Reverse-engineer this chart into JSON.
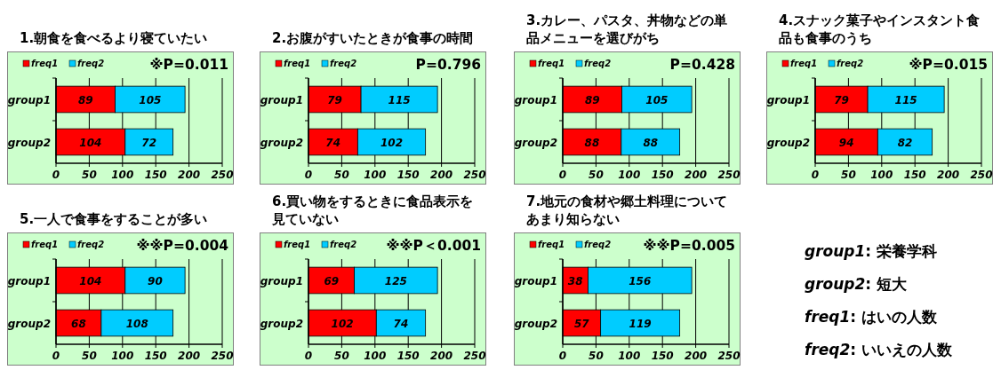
{
  "chart_data": [
    {
      "type": "bar",
      "orientation": "horizontal",
      "stacked": true,
      "title": "1.朝食を食べるより寝ていたい",
      "categories": [
        "group1",
        "group2"
      ],
      "series": [
        {
          "name": "freq1",
          "color": "#ff0000",
          "values": [
            89,
            104
          ]
        },
        {
          "name": "freq2",
          "color": "#00ccff",
          "values": [
            105,
            72
          ]
        }
      ],
      "xlim": [
        0,
        250
      ],
      "xticks": [
        0,
        50,
        100,
        150,
        200,
        250
      ],
      "grid": "x",
      "legend": "top left",
      "data_labels": true,
      "annotations": [
        "※P=0.011"
      ]
    },
    {
      "type": "bar",
      "orientation": "horizontal",
      "stacked": true,
      "title": "2.お腹がすいたときが食事の時間",
      "categories": [
        "group1",
        "group2"
      ],
      "series": [
        {
          "name": "freq1",
          "color": "#ff0000",
          "values": [
            79,
            74
          ]
        },
        {
          "name": "freq2",
          "color": "#00ccff",
          "values": [
            115,
            102
          ]
        }
      ],
      "xlim": [
        0,
        250
      ],
      "xticks": [
        0,
        50,
        100,
        150,
        200,
        250
      ],
      "grid": "x",
      "legend": "top left",
      "data_labels": true,
      "annotations": [
        "P=0.796"
      ]
    },
    {
      "type": "bar",
      "orientation": "horizontal",
      "stacked": true,
      "title": "3.カレー、パスタ、丼物などの単品メニューを選びがち",
      "categories": [
        "group1",
        "group2"
      ],
      "series": [
        {
          "name": "freq1",
          "color": "#ff0000",
          "values": [
            89,
            88
          ]
        },
        {
          "name": "freq2",
          "color": "#00ccff",
          "values": [
            105,
            88
          ]
        }
      ],
      "xlim": [
        0,
        250
      ],
      "xticks": [
        0,
        50,
        100,
        150,
        200,
        250
      ],
      "grid": "x",
      "legend": "top left",
      "data_labels": true,
      "annotations": [
        "P=0.428"
      ]
    },
    {
      "type": "bar",
      "orientation": "horizontal",
      "stacked": true,
      "title": "4.スナック菓子やインスタント食品も食事のうち",
      "categories": [
        "group1",
        "group2"
      ],
      "series": [
        {
          "name": "freq1",
          "color": "#ff0000",
          "values": [
            79,
            94
          ]
        },
        {
          "name": "freq2",
          "color": "#00ccff",
          "values": [
            115,
            82
          ]
        }
      ],
      "xlim": [
        0,
        250
      ],
      "xticks": [
        0,
        50,
        100,
        150,
        200,
        250
      ],
      "grid": "x",
      "legend": "top left",
      "data_labels": true,
      "annotations": [
        "※P=0.015"
      ]
    },
    {
      "type": "bar",
      "orientation": "horizontal",
      "stacked": true,
      "title": "5.一人で食事をすることが多い",
      "categories": [
        "group1",
        "group2"
      ],
      "series": [
        {
          "name": "freq1",
          "color": "#ff0000",
          "values": [
            104,
            68
          ]
        },
        {
          "name": "freq2",
          "color": "#00ccff",
          "values": [
            90,
            108
          ]
        }
      ],
      "xlim": [
        0,
        250
      ],
      "xticks": [
        0,
        50,
        100,
        150,
        200,
        250
      ],
      "grid": "x",
      "legend": "top left",
      "data_labels": true,
      "annotations": [
        "※※P=0.004"
      ]
    },
    {
      "type": "bar",
      "orientation": "horizontal",
      "stacked": true,
      "title": "6.買い物をするときに食品表示を見ていない",
      "categories": [
        "group1",
        "group2"
      ],
      "series": [
        {
          "name": "freq1",
          "color": "#ff0000",
          "values": [
            69,
            102
          ]
        },
        {
          "name": "freq2",
          "color": "#00ccff",
          "values": [
            125,
            74
          ]
        }
      ],
      "xlim": [
        0,
        250
      ],
      "xticks": [
        0,
        50,
        100,
        150,
        200,
        250
      ],
      "grid": "x",
      "legend": "top left",
      "data_labels": true,
      "annotations": [
        "※※P＜0.001"
      ]
    },
    {
      "type": "bar",
      "orientation": "horizontal",
      "stacked": true,
      "title": "7.地元の食材や郷土料理についてあまり知らない",
      "categories": [
        "group1",
        "group2"
      ],
      "series": [
        {
          "name": "freq1",
          "color": "#ff0000",
          "values": [
            38,
            57
          ]
        },
        {
          "name": "freq2",
          "color": "#00ccff",
          "values": [
            156,
            119
          ]
        }
      ],
      "xlim": [
        0,
        250
      ],
      "xticks": [
        0,
        50,
        100,
        150,
        200,
        250
      ],
      "grid": "x",
      "legend": "top left",
      "data_labels": true,
      "annotations": [
        "※※P=0.005"
      ]
    },
    {
      "type": "other",
      "annotations": [
        "group1: 栄養学科",
        "group2: 短大",
        "freq1: はいの人数",
        "freq2: いいえの人数"
      ]
    }
  ]
}
